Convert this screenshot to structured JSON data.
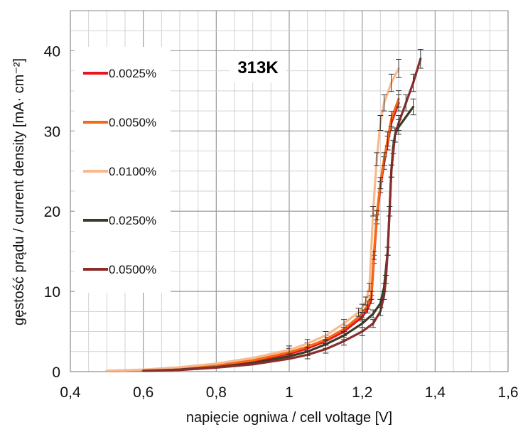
{
  "chart_data": {
    "type": "line",
    "title": "",
    "annotation": "313K",
    "xlabel": "napięcie ogniwa / cell voltage [V]",
    "ylabel": "gęstość prądu / current density [mA· cm⁻²]",
    "xlim": [
      0.4,
      1.6
    ],
    "ylim": [
      0,
      45
    ],
    "x_ticks": [
      0.4,
      0.6,
      0.8,
      1.0,
      1.2,
      1.4,
      1.6
    ],
    "x_tick_labels": [
      "0,4",
      "0,6",
      "0,8",
      "1",
      "1,2",
      "1,4",
      "1,6"
    ],
    "y_ticks": [
      0,
      10,
      20,
      30,
      40
    ],
    "y_tick_labels": [
      "0",
      "10",
      "20",
      "30",
      "40"
    ],
    "grid": true,
    "legend_position": "left",
    "series": [
      {
        "name": "0.0025%",
        "color": "#e8141e",
        "x": [
          0.5,
          0.6,
          0.7,
          0.8,
          0.9,
          1.0,
          1.05,
          1.1,
          1.15,
          1.2,
          1.215,
          1.225,
          1.232,
          1.24,
          1.25,
          1.26,
          1.27,
          1.28,
          1.3
        ],
        "y": [
          0.05,
          0.15,
          0.35,
          0.75,
          1.3,
          2.2,
          2.9,
          3.8,
          5.0,
          6.8,
          7.8,
          9.0,
          14,
          19,
          23,
          26,
          28.5,
          31,
          33.5
        ]
      },
      {
        "name": "0.0050%",
        "color": "#f46a12",
        "x": [
          0.5,
          0.6,
          0.7,
          0.8,
          0.9,
          1.0,
          1.05,
          1.1,
          1.15,
          1.2,
          1.215,
          1.225,
          1.232,
          1.24,
          1.25,
          1.26,
          1.27,
          1.28,
          1.3
        ],
        "y": [
          0.05,
          0.15,
          0.35,
          0.8,
          1.4,
          2.4,
          3.1,
          4.0,
          5.3,
          7.2,
          8.3,
          9.5,
          14.5,
          19.5,
          23.5,
          26.5,
          29,
          31.5,
          34
        ]
      },
      {
        "name": "0.0100%",
        "color": "#f8b98e",
        "x": [
          0.5,
          0.6,
          0.7,
          0.8,
          0.9,
          1.0,
          1.05,
          1.1,
          1.15,
          1.19,
          1.2,
          1.21,
          1.22,
          1.23,
          1.24,
          1.25,
          1.26,
          1.28,
          1.3
        ],
        "y": [
          0.1,
          0.25,
          0.55,
          1.0,
          1.7,
          2.7,
          3.5,
          4.5,
          6.0,
          7.4,
          7.9,
          8.8,
          10.5,
          20,
          26.5,
          31,
          33.5,
          36,
          37.8
        ]
      },
      {
        "name": "0.0250%",
        "color": "#3b3b23",
        "x": [
          0.6,
          0.7,
          0.8,
          0.9,
          1.0,
          1.05,
          1.1,
          1.15,
          1.2,
          1.23,
          1.25,
          1.26,
          1.27,
          1.275,
          1.28,
          1.285,
          1.29,
          1.3,
          1.34
        ],
        "y": [
          0.1,
          0.25,
          0.55,
          1.05,
          1.9,
          2.5,
          3.4,
          4.5,
          6.0,
          7.2,
          8.5,
          10.5,
          15,
          20,
          25,
          28,
          29.5,
          30.5,
          33
        ]
      },
      {
        "name": "0.0500%",
        "color": "#8b2d2d",
        "x": [
          0.6,
          0.7,
          0.8,
          0.9,
          1.0,
          1.05,
          1.1,
          1.15,
          1.2,
          1.23,
          1.25,
          1.26,
          1.265,
          1.27,
          1.275,
          1.28,
          1.29,
          1.3,
          1.32,
          1.34,
          1.36
        ],
        "y": [
          0.1,
          0.2,
          0.5,
          0.9,
          1.6,
          2.1,
          2.8,
          3.8,
          5.0,
          6.0,
          7.5,
          9.5,
          11.5,
          15,
          20,
          25,
          29.5,
          31,
          33.5,
          36,
          39
        ]
      }
    ]
  }
}
